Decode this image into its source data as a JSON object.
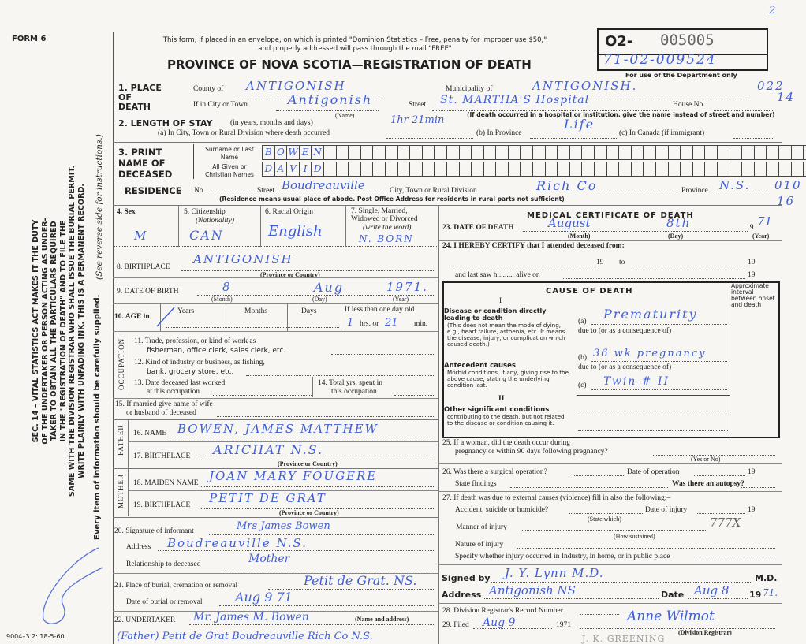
{
  "margin": {
    "form": "FORM 6",
    "act_lines": [
      "SEC. 14 – VITAL STATISTICS ACT MAKES IT THE DUTY",
      "OF THE UNDERTAKER OR PERSON ACTING AS UNDER-",
      "TAKER TO OBTAIN ALL THE PARTICULARS REQUIRED",
      "IN THE \"REGISTRATION OF DEATH\" AND TO FILE THE",
      "SAME WITH THE DIVISION REGISTRAR WHO SHALL ISSUE THE BURIAL PERMIT.",
      "WRITE PLAINLY WITH UNFADING INK. THIS IS A PERMANENT RECORD."
    ],
    "every_item": "Every item of information should be carefully supplied.",
    "see_reverse": "(See reverse side for instructions.)",
    "form_code": "9004–3.2: 18-5-60",
    "page_mark": "2"
  },
  "header": {
    "notice": "This form, if placed in an envelope, on which is printed \"Dominion Statistics – Free, penalty for improper use $50,\" and properly addressed will pass through the mail \"FREE\"",
    "title": "PROVINCE OF NOVA SCOTIA—REGISTRATION OF DEATH",
    "reg_prefix": "O2-",
    "reg_number": "005005",
    "dept_number": "71-02-009524",
    "dept_note": "For use of the Department only",
    "side_codes": [
      "022",
      "14",
      "010",
      "16"
    ]
  },
  "place": {
    "label": "1. PLACE OF DEATH",
    "county_label": "County of",
    "county": "ANTIGONISH",
    "municipality_label": "Municipality of",
    "municipality": "ANTIGONISH.",
    "city_label": "If in City or Town",
    "city": "Antigonish",
    "name_note": "(Name)",
    "street_label": "Street",
    "street": "St. MARTHA'S Hospital",
    "house_label": "House No.",
    "hospital_note": "(If death occurred in a hospital or institution, give the name instead of street and number)"
  },
  "stay": {
    "label": "2. LENGTH OF STAY",
    "label_note": "(in years, months and days)",
    "a_label": "(a) In City, Town or Rural Division where death occurred",
    "a_value": "1hr 21min",
    "b_label": "(b) In Province",
    "b_value": "Life",
    "c_label": "(c) In Canada (if immigrant)"
  },
  "name": {
    "label": "3. PRINT NAME OF DECEASED",
    "surname_label": "Surname or Last Name",
    "surname": [
      "B",
      "O",
      "W",
      "E",
      "N"
    ],
    "given_label": "All Given or Christian Names",
    "given": [
      "D",
      "A",
      "V",
      "I",
      "D"
    ]
  },
  "residence": {
    "label": "RESIDENCE",
    "no_label": "No",
    "street_label": "Street",
    "street": "Boudreauville",
    "city_label": "City, Town or Rural Division",
    "city": "Rich Co",
    "province_label": "Province",
    "province": "N.S.",
    "note": "(Residence means usual place of abode. Post Office Address for residents in rural parts not sufficient)"
  },
  "personal": {
    "sex_label": "4. Sex",
    "sex": "M",
    "citizenship_label": "5. Citizenship",
    "citizenship_note": "(Nationality)",
    "citizenship": "CAN",
    "racial_label": "6. Racial Origin",
    "racial": "English",
    "marital_label": "7. Single, Married, Widowed or Divorced",
    "marital_note": "(write the word)",
    "marital": "N. BORN",
    "birthplace_label": "8. BIRTHPLACE",
    "birthplace": "ANTIGONISH",
    "prov_country": "(Province or Country)",
    "dob_label": "9. DATE OF BIRTH",
    "dob_day": "8",
    "dob_month": "Aug",
    "dob_year": "1971.",
    "month_note": "(Month)",
    "day_note": "(Day)",
    "year_note": "(Year)",
    "age_label": "10. AGE in",
    "years": "Years",
    "months": "Months",
    "days": "Days",
    "less_day": "If less than one day old",
    "hrs_label": "hrs. or",
    "hrs": "1",
    "min_label": "min.",
    "min": "21"
  },
  "occupation": {
    "side": "OCCUPATION",
    "q11": "11. Trade, profession, or kind of work as",
    "q11b": "fisherman, office clerk, sales clerk, etc.",
    "q12": "12. Kind of industry or business, as fishing,",
    "q12b": "bank, grocery store, etc.",
    "q13": "13. Date deceased last worked",
    "q13b": "at this occupation",
    "q14": "14. Total yrs. spent in",
    "q14b": "this occupation",
    "q15": "15. If married give name of wife",
    "q15b": "or husband of deceased"
  },
  "parents": {
    "father_side": "FATHER",
    "mother_side": "MOTHER",
    "q16": "16. NAME",
    "father_name": "BOWEN, JAMES MATTHEW",
    "q17": "17. BIRTHPLACE",
    "father_birthplace": "ARICHAT N.S.",
    "q18": "18. MAIDEN NAME",
    "mother_name": "JOAN MARY FOUGERE",
    "q19": "19. BIRTHPLACE",
    "mother_birthplace": "PETIT DE GRAT",
    "prov_country": "(Province or Country)"
  },
  "informant": {
    "q20": "20. Signature of informant",
    "signature": "Mrs James Bowen",
    "address_label": "Address",
    "address": "Boudreauville N.S.",
    "relationship_label": "Relationship to deceased",
    "relationship": "Mother",
    "q21": "21. Place of burial, cremation or removal",
    "burial_place": "Petit de Grat. NS.",
    "date_label": "Date of burial or removal",
    "burial_date": "Aug 9 71",
    "q22": "22. UNDERTAKER",
    "undertaker": "Mr. James M. Bowen",
    "undertaker_line2": "(Father) Petit de Grat Boudreauville Rich Co N.S.",
    "name_address_note": "(Name and address)"
  },
  "medical": {
    "title": "MEDICAL CERTIFICATE OF DEATH",
    "q23": "23. DATE OF DEATH",
    "death_month": "August",
    "death_day": "8th",
    "death_year_prefix": "19",
    "death_year": "71",
    "month_note": "(Month)",
    "day_note": "(Day)",
    "year_note": "(Year)",
    "q24": "24. I HEREBY CERTIFY that I attended deceased from:",
    "from_19": "19",
    "to": "to",
    "to_19": "19",
    "last_saw": "and last saw h ........ alive on",
    "last_19": "19"
  },
  "cause": {
    "title": "CAUSE OF DEATH",
    "interval": "Approximate interval between onset and death",
    "part1": "I",
    "disease_head": "Disease or condition directly leading to death",
    "disease_note": "(This does not mean the mode of dying, e.g., heart failure, asthenia, etc. It means the disease, injury, or complication which caused death.)",
    "a": "(a)",
    "a_value": "Prematurity",
    "due_to": "due to (or as a consequence of)",
    "antecedent_head": "Antecedent causes",
    "antecedent_note": "Morbid conditions, if any, giving rise to the above cause, stating the underlying condition last.",
    "b": "(b)",
    "b_value": "36 wk pregnancy",
    "c": "(c)",
    "c_value": "Twin # II",
    "part2": "II",
    "other_head": "Other significant conditions",
    "other_note": "contributing to the death, but not related to the disease or condition causing it."
  },
  "later": {
    "q25": "25. If a woman, did the death occur during",
    "q25b": "pregnancy or within 90 days following pregnancy?",
    "yes_no": "(Yes or No)",
    "q26": "26. Was there a surgical operation?",
    "op_date": "Date of operation",
    "op_19": "19",
    "findings": "State findings",
    "autopsy": "Was there an autopsy?",
    "q27": "27. If death was due to external causes (violence) fill in also the following:–",
    "accident": "Accident, suicide or homicide?",
    "state_which": "(State which)",
    "injury_date": "Date of injury",
    "injury_19": "19",
    "code": "777X",
    "manner": "Manner of injury",
    "how": "(How sustained)",
    "nature": "Nature of injury",
    "specify": "Specify whether injury occurred in Industry, in home, or in public place",
    "signed_label": "Signed by",
    "signed": "J. Y. Lynn M.D.",
    "md": "M.D.",
    "address_label": "Address",
    "address": "Antigonish NS",
    "date_label": "Date",
    "date": "Aug 8",
    "year_prefix": "19",
    "year": "71.",
    "q28": "28. Division Registrar's Record Number",
    "q29": "29. Filed",
    "filed": "Aug 9",
    "filed_year": "1971",
    "registrar": "Anne Wilmot",
    "registrar_note": "(Division Registrar)",
    "stamp": "J. K. GREENING"
  }
}
